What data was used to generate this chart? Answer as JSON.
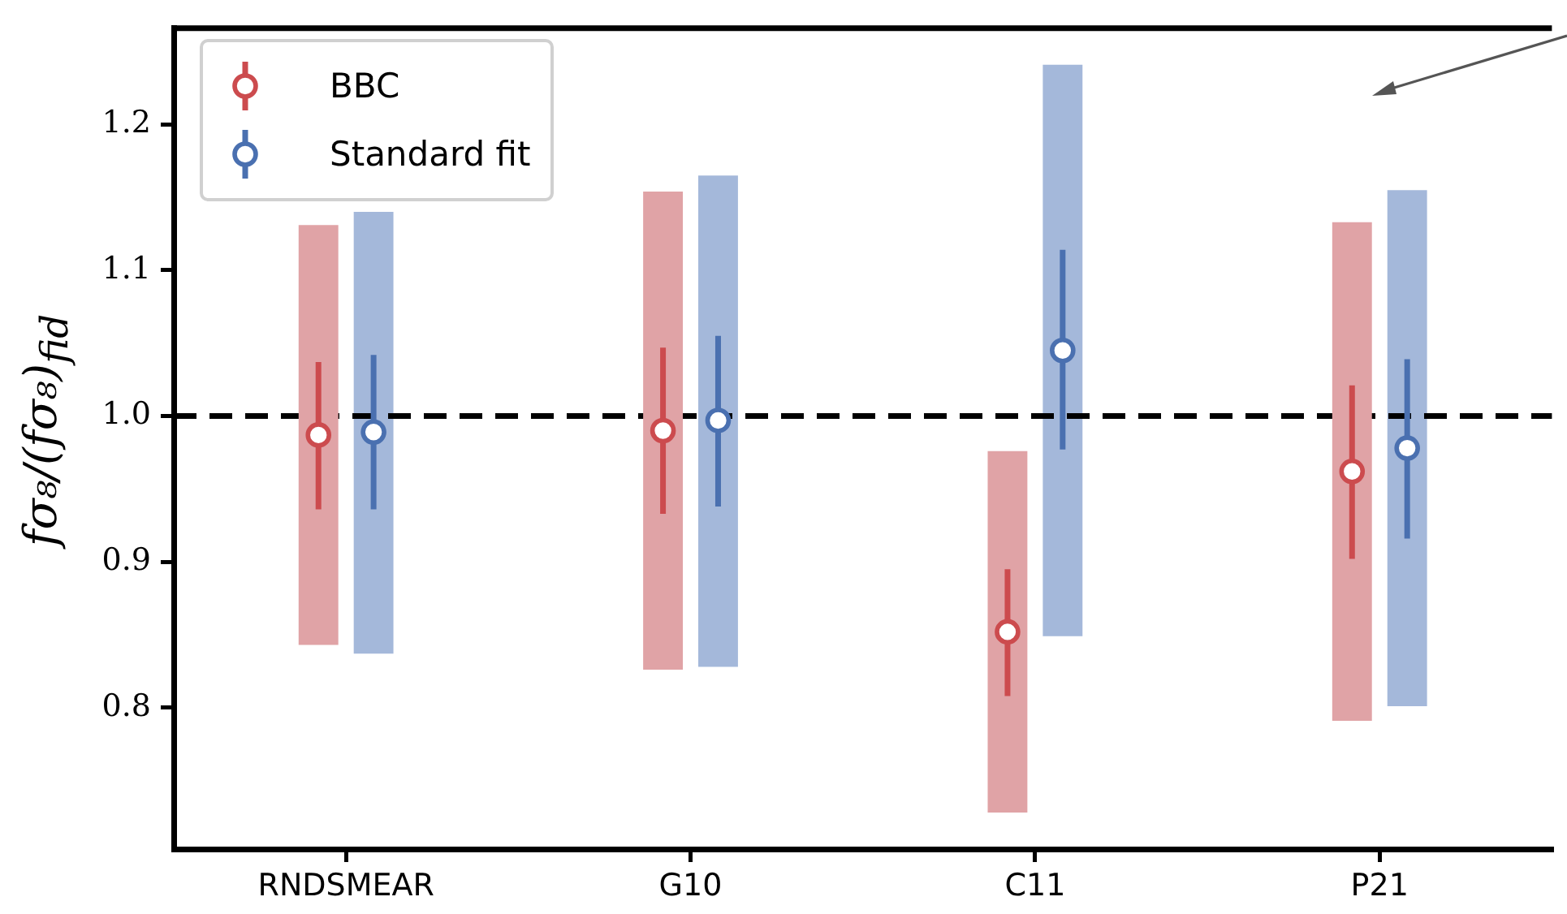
{
  "chart_data": {
    "type": "bar",
    "ylabel": "fσ₈/(fσ₈)$_{fid}$",
    "categories": [
      "RNDSMEAR",
      "G10",
      "C11",
      "P21"
    ],
    "series": [
      {
        "color": "#e0a3a6",
        "base": [
          0.843,
          0.826,
          0.728,
          0.791
        ],
        "values": [
          0.288,
          0.328,
          0.248,
          0.342
        ]
      },
      {
        "color": "#a4b8da",
        "base": [
          0.837,
          0.828,
          0.849,
          0.801
        ],
        "values": [
          0.303,
          0.337,
          0.392,
          0.354
        ]
      },
      {
        "type": "scatter",
        "name": "BBC",
        "color": "#cc4b4e",
        "x": [
          "RNDSMEAR",
          "G10",
          "C11",
          "P21"
        ],
        "values": [
          0.987,
          0.99,
          0.852,
          0.962
        ],
        "errors": [
          [
            0.936,
            1.037
          ],
          [
            0.933,
            1.047
          ],
          [
            0.808,
            0.895
          ],
          [
            0.902,
            1.021
          ]
        ]
      },
      {
        "type": "scatter",
        "name": "Standard fit",
        "color": "#4a70b0",
        "x": [
          "RNDSMEAR",
          "G10",
          "C11",
          "P21"
        ],
        "values": [
          0.989,
          0.997,
          1.045,
          0.978
        ],
        "errors": [
          [
            0.936,
            1.042
          ],
          [
            0.938,
            1.055
          ],
          [
            0.977,
            1.114
          ],
          [
            0.916,
            1.039
          ]
        ]
      }
    ],
    "ylim": [
      0.703,
      1.266
    ],
    "yticks": [
      0.8,
      0.9,
      {
        "value": 1,
        "label": "1.0"
      },
      1.1,
      1.2
    ],
    "ref_lines": [
      {
        "axis": "y",
        "value": 1,
        "color": "#000000",
        "line_style": "dashed"
      }
    ],
    "grid": false,
    "legend": "top left",
    "marker": "circle"
  }
}
